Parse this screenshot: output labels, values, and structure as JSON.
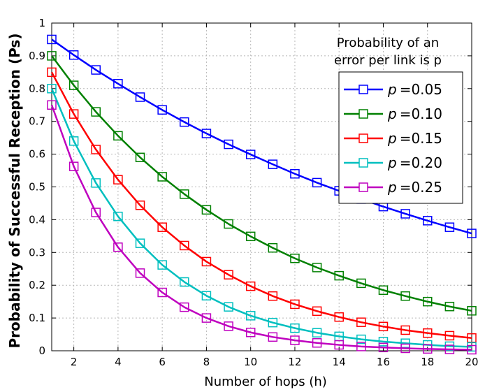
{
  "chart_data": {
    "type": "line",
    "title": "",
    "xlabel": "Number of hops (h)",
    "ylabel": "Probability of Successful Reception (Ps)",
    "annotation_lines": [
      "Probability of an",
      "error per link is p"
    ],
    "xlim": [
      1,
      20
    ],
    "ylim": [
      0,
      1
    ],
    "xticks": [
      2,
      4,
      6,
      8,
      10,
      12,
      14,
      16,
      18,
      20
    ],
    "yticks": [
      0,
      0.1,
      0.2,
      0.3,
      0.4,
      0.5,
      0.6,
      0.7,
      0.8,
      0.9,
      1
    ],
    "ytick_labels": [
      "0",
      "0.1",
      "0.2",
      "0.3",
      "0.4",
      "0.5",
      "0.6",
      "0.7",
      "0.8",
      "0.9",
      "1"
    ],
    "grid": true,
    "legend_position": "top-right",
    "x": [
      1,
      2,
      3,
      4,
      5,
      6,
      7,
      8,
      9,
      10,
      11,
      12,
      13,
      14,
      15,
      16,
      17,
      18,
      19,
      20
    ],
    "series": [
      {
        "name": "p =0.05",
        "p_symbol": "p",
        "p_value": "=0.05",
        "color": "#0000ff",
        "values": [
          0.95,
          0.9025,
          0.857,
          0.815,
          0.774,
          0.735,
          0.698,
          0.663,
          0.63,
          0.599,
          0.569,
          0.54,
          0.513,
          0.488,
          0.463,
          0.44,
          0.418,
          0.397,
          0.377,
          0.358
        ]
      },
      {
        "name": "p =0.10",
        "p_symbol": "p",
        "p_value": "=0.10",
        "color": "#008000",
        "values": [
          0.9,
          0.81,
          0.729,
          0.656,
          0.59,
          0.531,
          0.478,
          0.43,
          0.387,
          0.349,
          0.314,
          0.282,
          0.254,
          0.229,
          0.206,
          0.185,
          0.167,
          0.15,
          0.135,
          0.122
        ]
      },
      {
        "name": "p =0.15",
        "p_symbol": "p",
        "p_value": "=0.15",
        "color": "#ff0000",
        "values": [
          0.85,
          0.7225,
          0.614,
          0.522,
          0.444,
          0.377,
          0.321,
          0.272,
          0.232,
          0.197,
          0.167,
          0.142,
          0.121,
          0.103,
          0.087,
          0.074,
          0.063,
          0.054,
          0.046,
          0.039
        ]
      },
      {
        "name": "p =0.20",
        "p_symbol": "p",
        "p_value": "=0.20",
        "color": "#00bfbf",
        "values": [
          0.8,
          0.64,
          0.512,
          0.41,
          0.328,
          0.262,
          0.21,
          0.168,
          0.134,
          0.107,
          0.086,
          0.069,
          0.055,
          0.044,
          0.035,
          0.028,
          0.023,
          0.018,
          0.014,
          0.012
        ]
      },
      {
        "name": "p =0.25",
        "p_symbol": "p",
        "p_value": "=0.25",
        "color": "#bf00bf",
        "values": [
          0.75,
          0.5625,
          0.422,
          0.316,
          0.237,
          0.178,
          0.133,
          0.1,
          0.075,
          0.056,
          0.042,
          0.032,
          0.024,
          0.018,
          0.013,
          0.01,
          0.0075,
          0.0056,
          0.0042,
          0.0032
        ]
      }
    ]
  }
}
